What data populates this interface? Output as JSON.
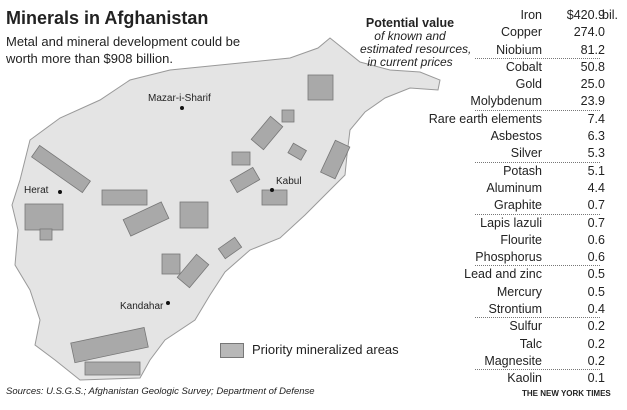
{
  "title": "Minerals in Afghanistan",
  "subtitle": "Metal and mineral development could be worth more than $908 billion.",
  "cities": [
    "Mazar-i-Sharif",
    "Herat",
    "Kabul",
    "Kandahar"
  ],
  "value_header": {
    "title": "Potential value",
    "line1": "of known and",
    "line2": "estimated resources,",
    "line3": "in current prices"
  },
  "unit": "bil.",
  "minerals": [
    {
      "name": "Iron",
      "value": "$420.9"
    },
    {
      "name": "Copper",
      "value": "274.0"
    },
    {
      "name": "Niobium",
      "value": "81.2"
    },
    {
      "name": "Cobalt",
      "value": "50.8"
    },
    {
      "name": "Gold",
      "value": "25.0"
    },
    {
      "name": "Molybdenum",
      "value": "23.9"
    },
    {
      "name": "Rare earth elements",
      "value": "7.4"
    },
    {
      "name": "Asbestos",
      "value": "6.3"
    },
    {
      "name": "Silver",
      "value": "5.3"
    },
    {
      "name": "Potash",
      "value": "5.1"
    },
    {
      "name": "Aluminum",
      "value": "4.4"
    },
    {
      "name": "Graphite",
      "value": "0.7"
    },
    {
      "name": "Lapis lazuli",
      "value": "0.7"
    },
    {
      "name": "Flourite",
      "value": "0.6"
    },
    {
      "name": "Phosphorus",
      "value": "0.6"
    },
    {
      "name": "Lead and zinc",
      "value": "0.5"
    },
    {
      "name": "Mercury",
      "value": "0.5"
    },
    {
      "name": "Strontium",
      "value": "0.4"
    },
    {
      "name": "Sulfur",
      "value": "0.2"
    },
    {
      "name": "Talc",
      "value": "0.2"
    },
    {
      "name": "Magnesite",
      "value": "0.2"
    },
    {
      "name": "Kaolin",
      "value": "0.1"
    }
  ],
  "legend": "Priority mineralized areas",
  "sources": "Sources: U.S.G.S.; Afghanistan Geologic Survey; Department of Defense",
  "credit": "THE NEW YORK TIMES",
  "colors": {
    "land": "#e2e2e2",
    "area": "#a9a9a9"
  }
}
